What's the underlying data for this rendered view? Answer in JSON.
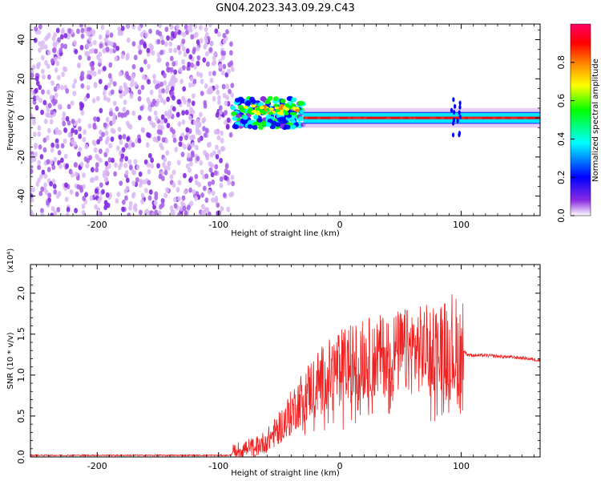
{
  "title": "GN04.2023.343.09.29.C43",
  "chart_data": [
    {
      "type": "heatmap",
      "xlabel": "Height of straight line (km)",
      "ylabel": "Frequency (Hz)",
      "xlim": [
        -255,
        165
      ],
      "ylim": [
        -50,
        48
      ],
      "xticks": [
        -200,
        -100,
        0,
        100
      ],
      "yticks": [
        -40,
        -20,
        0,
        20,
        40
      ],
      "xtick_labels": [
        "-200",
        "-100",
        "0",
        "100"
      ],
      "ytick_labels": [
        "-40",
        "-20",
        "0",
        "20",
        "40"
      ],
      "colorbar": {
        "label": "Normalized spectral amplitude",
        "range": [
          0,
          1
        ],
        "ticks": [
          0,
          0.2,
          0.4,
          0.6,
          0.8
        ],
        "tick_labels": [
          "0.0",
          "0.2",
          "0.4",
          "0.6",
          "0.8"
        ],
        "colors": [
          "#ffffff",
          "#8a2be2",
          "#0000ff",
          "#00ffff",
          "#00ff00",
          "#ffff00",
          "#ff8000",
          "#ff0000",
          "#ff0066"
        ]
      },
      "regions": [
        {
          "x": [
            -255,
            -88
          ],
          "freq_range": [
            -50,
            48
          ],
          "amplitude": 0.12
        },
        {
          "x": [
            -88,
            -30
          ],
          "freq_range": [
            -5,
            10
          ],
          "amplitude": 0.45
        },
        {
          "x": [
            -30,
            165
          ],
          "freq_range": [
            -3,
            3
          ],
          "amplitude": 0.9
        }
      ],
      "grid": false
    },
    {
      "type": "line",
      "xlabel": "Height of straight line (km)",
      "ylabel": "SNR (10 * v/v)",
      "scale_label": "(x10⁴)",
      "xlim": [
        -255,
        165
      ],
      "ylim": [
        0,
        2.35
      ],
      "xticks": [
        -200,
        -100,
        0,
        100
      ],
      "yticks": [
        0,
        0.5,
        1.0,
        1.5,
        2.0
      ],
      "xtick_labels": [
        "-200",
        "-100",
        "0",
        "100"
      ],
      "ytick_labels": [
        "0.0",
        "0.5",
        "1.0",
        "1.5",
        "2.0"
      ],
      "color": "#ee2222",
      "grid": false,
      "series": [
        {
          "x": [
            -255,
            -200,
            -150,
            -100,
            -90,
            -88,
            -80,
            -70,
            -60,
            -50,
            -40,
            -30,
            -20,
            -10,
            0,
            10,
            20,
            30,
            40,
            50,
            60,
            70,
            80,
            90,
            95,
            100,
            102,
            105,
            110,
            120,
            130,
            140,
            150,
            160,
            165
          ],
          "values": [
            0.02,
            0.02,
            0.02,
            0.02,
            0.02,
            0.06,
            0.1,
            0.12,
            0.2,
            0.35,
            0.55,
            0.75,
            0.9,
            1.0,
            1.1,
            1.15,
            1.2,
            1.22,
            1.25,
            1.28,
            1.3,
            1.32,
            1.35,
            1.4,
            1.3,
            1.2,
            1.3,
            1.25,
            1.24,
            1.24,
            1.23,
            1.22,
            1.21,
            1.19,
            1.18
          ]
        }
      ]
    }
  ]
}
